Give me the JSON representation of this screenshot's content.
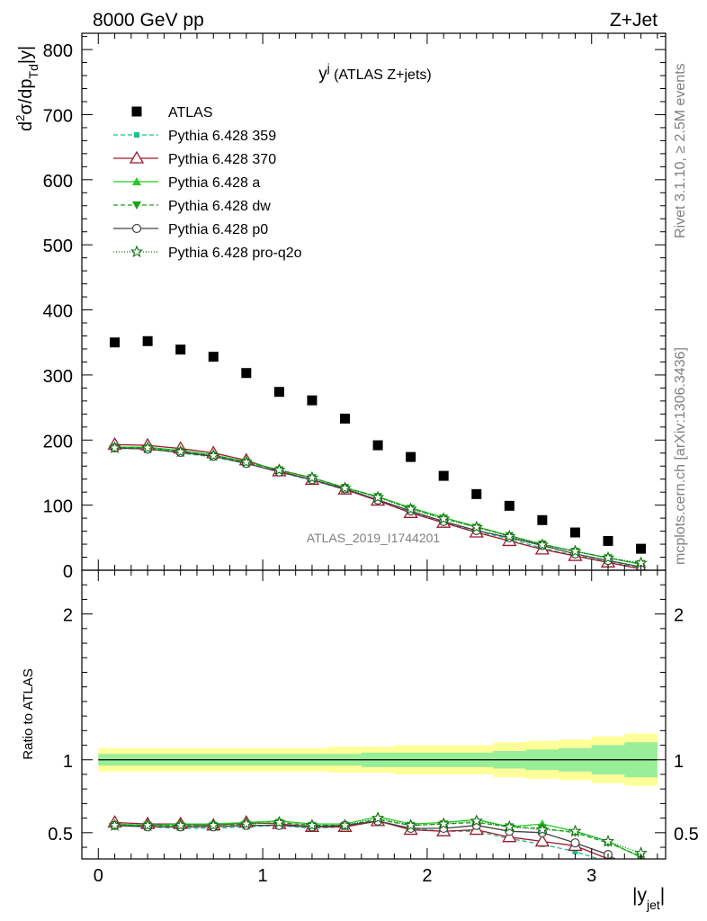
{
  "header": {
    "left": "8000 GeV pp",
    "right": "Z+Jet"
  },
  "side": {
    "rivet": "Rivet 3.1.10, ≥ 2.5M events",
    "mcplots": "mcplots.cern.ch [arXiv:1306.3436]"
  },
  "watermark": "ATLAS_2019_I1744201",
  "chart_data": [
    {
      "type": "scatter",
      "title": "y^j (ATLAS Z+jets)",
      "ylabel": "d²σ/dp_Td|y|",
      "xlim": [
        -0.1,
        3.45
      ],
      "ylim": [
        0,
        825
      ],
      "yticks": [
        0,
        100,
        200,
        300,
        400,
        500,
        600,
        700,
        800
      ],
      "legend_position": "top-left",
      "x": [
        0.1,
        0.3,
        0.5,
        0.7,
        0.9,
        1.1,
        1.3,
        1.5,
        1.7,
        1.9,
        2.1,
        2.3,
        2.5,
        2.7,
        2.9,
        3.1,
        3.3
      ],
      "data": {
        "name": "ATLAS",
        "color": "#000000",
        "marker": "square",
        "values": [
          350,
          352,
          339,
          328,
          303,
          274,
          261,
          233,
          192,
          174,
          145,
          117,
          99,
          77,
          58,
          45,
          33
        ]
      },
      "series": [
        {
          "name": "Pythia 6.428 359",
          "color": "#1fbf8f",
          "dash": "5,3",
          "marker": "square-small",
          "values": [
            187,
            187,
            180,
            174,
            164,
            151,
            138,
            124,
            108,
            90,
            74,
            60,
            48,
            34,
            23,
            13,
            4
          ]
        },
        {
          "name": "Pythia 6.428 370",
          "color": "#9b1b30",
          "dash": "",
          "marker": "triangle-open",
          "values": [
            193,
            192,
            187,
            180,
            169,
            152,
            139,
            124,
            107,
            88,
            73,
            58,
            45,
            32,
            22,
            12,
            2
          ]
        },
        {
          "name": "Pythia 6.428 a",
          "color": "#22cc22",
          "dash": "",
          "marker": "triangle",
          "values": [
            189,
            189,
            184,
            177,
            167,
            154,
            142,
            127,
            113,
            96,
            81,
            67,
            53,
            40,
            29,
            19,
            9
          ]
        },
        {
          "name": "Pythia 6.428 dw",
          "color": "#19a319",
          "dash": "5,3",
          "marker": "triangle-down",
          "values": [
            189,
            188,
            183,
            176,
            166,
            154,
            142,
            127,
            113,
            95,
            80,
            66,
            53,
            40,
            29,
            19,
            10
          ]
        },
        {
          "name": "Pythia 6.428 p0",
          "color": "#444444",
          "dash": "",
          "marker": "circle-open",
          "values": [
            188,
            186,
            181,
            175,
            164,
            151,
            139,
            125,
            108,
            91,
            75,
            61,
            50,
            38,
            25,
            15,
            5
          ]
        },
        {
          "name": "Pythia 6.428 pro-q2o",
          "color": "#107010",
          "dash": "1,2",
          "marker": "star",
          "values": [
            188,
            188,
            182,
            176,
            166,
            154,
            142,
            126,
            112,
            94,
            79,
            66,
            52,
            39,
            29,
            19,
            11
          ]
        }
      ]
    },
    {
      "type": "line",
      "ylabel": "Ratio to ATLAS",
      "xlabel": "|y_jet|",
      "xlim": [
        -0.1,
        3.45
      ],
      "ylim": [
        0.32,
        2.3
      ],
      "yticks": [
        0.5,
        1,
        2
      ],
      "xticks": [
        0,
        1,
        2,
        3
      ],
      "x": [
        0.1,
        0.3,
        0.5,
        0.7,
        0.9,
        1.1,
        1.3,
        1.5,
        1.7,
        1.9,
        2.1,
        2.3,
        2.5,
        2.7,
        2.9,
        3.1,
        3.3
      ],
      "band_inner": [
        0.04,
        0.04,
        0.04,
        0.04,
        0.04,
        0.04,
        0.04,
        0.04,
        0.05,
        0.05,
        0.05,
        0.05,
        0.06,
        0.07,
        0.08,
        0.1,
        0.12
      ],
      "band_outer": [
        0.08,
        0.08,
        0.08,
        0.08,
        0.08,
        0.08,
        0.08,
        0.09,
        0.09,
        0.1,
        0.1,
        0.1,
        0.12,
        0.13,
        0.14,
        0.16,
        0.18
      ],
      "series": [
        {
          "name": "Pythia 6.428 359",
          "values": [
            0.55,
            0.54,
            0.53,
            0.53,
            0.54,
            0.55,
            0.53,
            0.54,
            0.58,
            0.53,
            0.51,
            0.51,
            0.46,
            0.42,
            0.37,
            0.3,
            0.22
          ]
        },
        {
          "name": "Pythia 6.428 370",
          "values": [
            0.57,
            0.56,
            0.56,
            0.55,
            0.57,
            0.56,
            0.54,
            0.54,
            0.58,
            0.52,
            0.51,
            0.52,
            0.47,
            0.44,
            0.41,
            0.32,
            0.18
          ]
        },
        {
          "name": "Pythia 6.428 a",
          "values": [
            0.56,
            0.55,
            0.56,
            0.56,
            0.57,
            0.58,
            0.56,
            0.56,
            0.61,
            0.56,
            0.57,
            0.59,
            0.54,
            0.56,
            0.51,
            0.44,
            0.33
          ]
        },
        {
          "name": "Pythia 6.428 dw",
          "values": [
            0.55,
            0.55,
            0.55,
            0.55,
            0.56,
            0.57,
            0.55,
            0.55,
            0.59,
            0.55,
            0.56,
            0.57,
            0.54,
            0.53,
            0.5,
            0.43,
            0.34
          ]
        },
        {
          "name": "Pythia 6.428 p0",
          "values": [
            0.55,
            0.54,
            0.54,
            0.54,
            0.55,
            0.55,
            0.54,
            0.55,
            0.58,
            0.53,
            0.53,
            0.55,
            0.51,
            0.5,
            0.43,
            0.35,
            0.21
          ]
        },
        {
          "name": "Pythia 6.428 pro-q2o",
          "values": [
            0.55,
            0.55,
            0.55,
            0.55,
            0.56,
            0.57,
            0.55,
            0.55,
            0.6,
            0.55,
            0.56,
            0.58,
            0.54,
            0.52,
            0.51,
            0.44,
            0.36
          ]
        }
      ]
    }
  ]
}
